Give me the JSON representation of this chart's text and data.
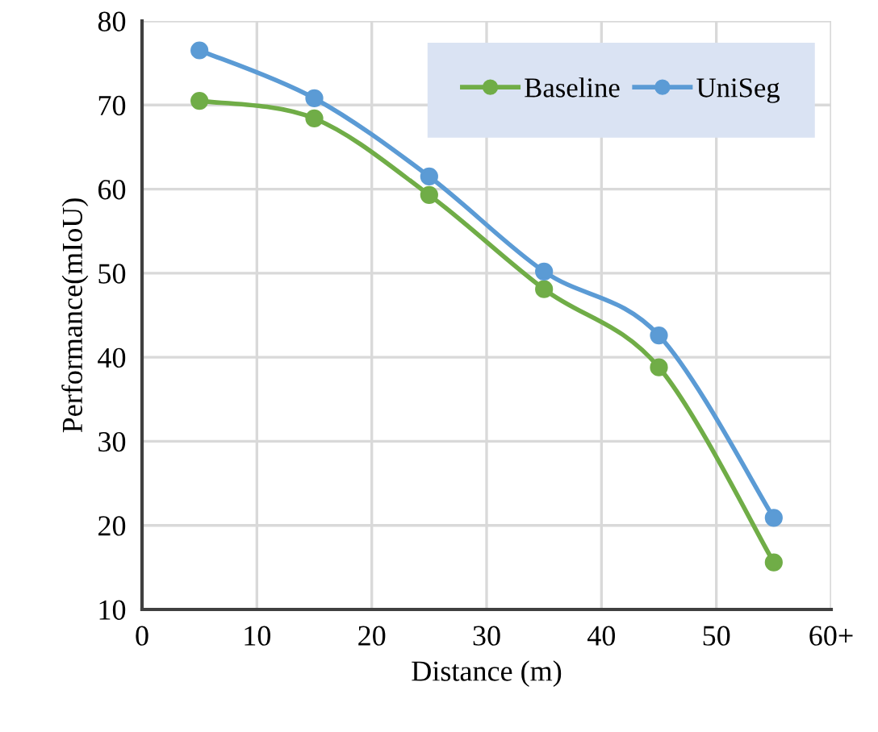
{
  "chart_data": {
    "type": "line",
    "xlabel": "Distance (m)",
    "ylabel": "Performance(mIoU)",
    "x": [
      5,
      15,
      25,
      35,
      45,
      55
    ],
    "series": [
      {
        "name": "Baseline",
        "color": "#70ad47",
        "values": [
          70.5,
          68.4,
          59.3,
          48.1,
          38.8,
          15.6
        ]
      },
      {
        "name": "UniSeg",
        "color": "#5b9bd5",
        "values": [
          76.5,
          70.8,
          61.5,
          50.2,
          42.6,
          20.9
        ]
      }
    ],
    "xlim": [
      0,
      60
    ],
    "xticks": [
      0,
      10,
      20,
      30,
      40,
      50,
      {
        "value": 60,
        "label": "60+"
      }
    ],
    "ylim": [
      10,
      80
    ],
    "yticks": [
      10,
      20,
      30,
      40,
      50,
      60,
      70,
      80
    ],
    "grid": true,
    "legend": "top right",
    "marker": "circle",
    "line_style": "solid"
  }
}
